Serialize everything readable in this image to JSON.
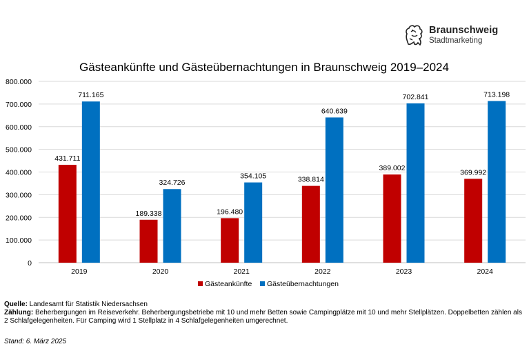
{
  "logo": {
    "brand": "Braunschweig",
    "sub": "Stadtmarketing",
    "icon": "lion-icon"
  },
  "chart_data": {
    "type": "bar",
    "title": "Gästeankünfte und Gästeübernachtungen in Braunschweig 2019–2024",
    "categories": [
      "2019",
      "2020",
      "2021",
      "2022",
      "2023",
      "2024"
    ],
    "series": [
      {
        "name": "Gästeankünfte",
        "color": "#c00000",
        "values": [
          431711,
          189338,
          196480,
          338814,
          389002,
          369992
        ],
        "labels": [
          "431.711",
          "189.338",
          "196.480",
          "338.814",
          "389.002",
          "369.992"
        ]
      },
      {
        "name": "Gästeübernachtungen",
        "color": "#0070c0",
        "values": [
          711165,
          324726,
          354105,
          640639,
          702841,
          713198
        ],
        "labels": [
          "711.165",
          "324.726",
          "354.105",
          "640.639",
          "702.841",
          "713.198"
        ]
      }
    ],
    "ylim": [
      0,
      800000
    ],
    "yticks": [
      0,
      100000,
      200000,
      300000,
      400000,
      500000,
      600000,
      700000,
      800000
    ],
    "ytick_labels": [
      "0",
      "100.000",
      "200.000",
      "300.000",
      "400.000",
      "500.000",
      "600.000",
      "700.000",
      "800.000"
    ],
    "grid": true,
    "legend": "bottom",
    "xlabel": "",
    "ylabel": ""
  },
  "footer": {
    "source_label": "Quelle:",
    "source_text": " Landesamt für Statistik Niedersachsen",
    "count_label": "Zählung:",
    "count_text": " Beherbergungen im Reiseverkehr. Beherbergungsbetriebe mit 10 und mehr Betten sowie Campingplätze mit 10 und mehr Stellplätzen. Doppelbetten zählen als",
    "count_text2": "2 Schlafgelegenheiten. Für Camping wird 1 Stellplatz in 4 Schlafgelegenheiten umgerechnet.",
    "stand": "Stand: 6. März 2025"
  }
}
